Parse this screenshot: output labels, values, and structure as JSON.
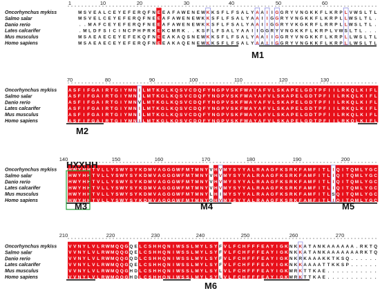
{
  "figure": {
    "blocks": [
      {
        "ruler": [
          "1",
          "10",
          "20",
          "30",
          "40",
          "50",
          "60"
        ],
        "species": [
          "Oncorhynchus mykiss",
          "Salmo salar",
          "Danio rerio",
          "Lates calcarifer",
          "Mus musculus",
          "Homo sapiens"
        ],
        "rows": [
          "..MSVEALCEYEFERQFNEEAFAWENEWKKSFLFSALYAAIIGGRYVNGKKFLKRPLVWSLTL",
          "..MSVELCEYEFERQFNEEAFAWENEWKKSFLFSALYAAIIGGRYVNGKKFLKRPLLWSLTL",
          "....MAFCEYEFERQFNEEAFAWENEWKKSFLFSALYAAIIGGRYVKGKRFLRRPLLWSLTL",
          "...MLDFSICINCPHPRKEKCMRK..KSFLFSALYAAIIGGRYVNGKKFLKRPLVWSLTL",
          "..MSAEAECEYEFEKQFNEEAKAQSNEWKKSFLFSALYAAIIGGRYVNGKKFLKRPLLWSLTL",
          "..MSAEAECEYEFERQFNEEAKAQENEWKKSFLFSALYAAIIGGRYVNGKKFLKRPLLWSLTL"
        ]
      },
      {
        "ruler": [
          "70",
          "80",
          "90",
          "100",
          "110",
          "120",
          "130"
        ],
        "species": [
          "Oncorhynchus mykiss",
          "Salmo salar",
          "Danio rerio",
          "Lates calcarifer",
          "Mus musculus",
          "Homo sapiens"
        ],
        "rows": [
          "ASFIFGAIRTGIYMNILMTKGLKQSVCDQFYNGPVSKFWAYAFVLSKAPELGDTPFIILRKQLKIFL",
          "ASFIFGAIRTGIYMNILMTKGLKQSVCDQFYNGPVSKFWAYAFVLSKAPELGDTPFIILRKQLKIFL",
          "ASFIFGAIRTGIYMNVLMTKGLKQSVCDQFYNGPVSKFWAYAFVLSKAPELGDTPFIILRKQLKIFL",
          "ASFIFGAIRTGIYMNILMTKGLKQSVCDQFYNGPVSKFWAYAFVLSKAPELGDTPFIILRKQLKIFL",
          "ASFIFGAIRTGIYMNILMTKGLKQSVCDQFYNGPVSKFWAYAFVLSKAPELGDTPFIILRKQLKIFL",
          "ASFIFGAIRTGIYMNILMTKGLKQSVCDQFYNGPVSKFWAYAFVLSKAPELGDTPFIILRKQLKIFL"
        ]
      },
      {
        "ruler": [
          "140",
          "150",
          "160",
          "170",
          "180",
          "190",
          "200"
        ],
        "species": [
          "Oncorhynchus mykiss",
          "Salmo salar",
          "Danio rerio",
          "Lates calcarifer",
          "Mus musculus",
          "Homo sapiens"
        ],
        "rows": [
          "HWYHHTVLLYSWYSYKDMVAGGGWFMTMNYVHVMYSYYALRAAGFKSRKFAMFITLIQITQMLYGC",
          "HWYHHTVLLYSWYSYKDMVAGGGWFMTMNYVHVMYSYYALRAAGFKSRKFAMFITLIQITQMLYGC",
          "HWYHHTVLLYSWYSYKDMVAGGGWFMTMNYVHVMYSYYALRAAGFKSRKFAMFITLIQITQMLYGC",
          "HWYHHTVLLYSWYSYKDMVAGGGWFMTMNYVHVMYSYYALRAAGFKSRKFAMFITLIQITQMLYGC",
          "HWYHHTVLLYSWYSYKDMVAGGGWFMTMNYLHIMYSYYALRAAGFKSRKFAMFITLSQITQMLYGC",
          "HWYHHTVLLYSWYSYKDMVAGGGWFMTMNYGHVMYSYYALRAAGFKSRKFAMFITLIQITQMLYGC"
        ]
      },
      {
        "ruler": [
          "210",
          "220",
          "230",
          "240",
          "250",
          "260",
          "270"
        ],
        "species": [
          "Oncorhynchus mykiss",
          "Salmo salar",
          "Danio rerio",
          "Lates calcarifer",
          "Mus musculus",
          "Homo sapiens"
        ],
        "rows": [
          "VVNYLVLRWMQQGQELCSHHQNIWSSLMYLSYFVLFCHFFFEAYIGKNKKATANKAAAAAA.RKTQ",
          "VVNYLVLRWMQQGQELCSHHQNIWSSLMYLSYFVLFCHFFFEAYIGKNKKATANKAAAAAAARKTQ",
          "VVNYLVLRWMQQGQDLCSHHQNIWSSLMYLSYFVLFCHFFFEAYIGKNKRKAAAKKTKSQ......",
          "VVNYLVLRWMQQGQELCSHHQNIWSSLMYLSYFVLFCHFFFEAYIGKNKKAAAATTKKSP......",
          "VVNYLVLRWMQQGHDLCSHHQNIWSSLMYLSYLVLFCHFFFEAYIGKMRKTTKAE..........",
          "VVNYLVLRWMQQGHDLCSHHQNIWSSLMYLSYLVLFCHFFFEAYIGKMRKTTKAE.........."
        ]
      }
    ],
    "motifs": [
      "M1",
      "M2",
      "HXXHH",
      "M3",
      "M4",
      "M5",
      "M6"
    ],
    "colors": {
      "conserved_bg": "#e8101a",
      "conserved_text": "#ffffff",
      "similar_text": "#c41a1a",
      "similar_box": "#6a6ad8",
      "hxxhh_box": "#23a23a",
      "underline": "#111111",
      "ruler": "#333333"
    }
  }
}
